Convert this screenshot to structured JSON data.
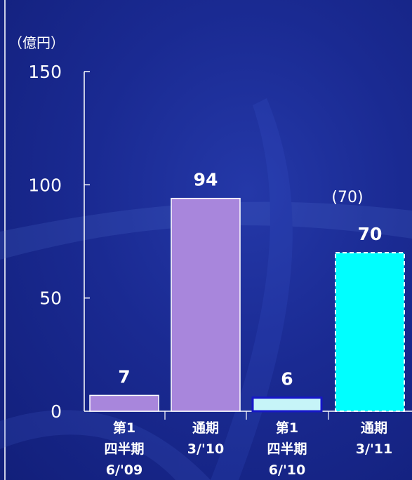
{
  "chart_data": {
    "type": "bar",
    "unit_label": "（億円）",
    "ylim": [
      0,
      150
    ],
    "yticks": [
      "0",
      "50",
      "100",
      "150"
    ],
    "categories": [
      [
        "第1",
        "四半期",
        "6/'09"
      ],
      [
        "通期",
        "3/'10"
      ],
      [
        "第1",
        "四半期",
        "6/'10"
      ],
      [
        "通期",
        "3/'11"
      ]
    ],
    "values": [
      7,
      94,
      6,
      70
    ],
    "value_labels": [
      "7",
      "94",
      "6",
      "70"
    ],
    "forecast_note": "(70)",
    "colors": {
      "bar_actual_prior": "#a886dc",
      "bar_q1_current": "#c6f4f8",
      "bar_q1_current_border": "#1616c8",
      "bar_forecast": "#00ffff",
      "axis": "#ffffff",
      "text": "#ffffff"
    },
    "bar_styles": [
      "solid",
      "solid",
      "bordered",
      "dashed"
    ]
  }
}
